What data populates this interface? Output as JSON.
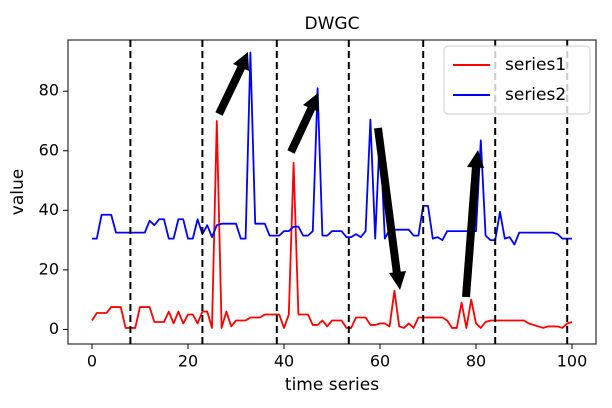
{
  "chart_data": {
    "type": "line",
    "title": "DWGC",
    "xlabel": "time series",
    "ylabel": "value",
    "x": [
      0,
      1,
      2,
      3,
      4,
      5,
      6,
      7,
      8,
      9,
      10,
      11,
      12,
      13,
      14,
      15,
      16,
      17,
      18,
      19,
      20,
      21,
      22,
      23,
      24,
      25,
      26,
      27,
      28,
      29,
      30,
      31,
      32,
      33,
      34,
      35,
      36,
      37,
      38,
      39,
      40,
      41,
      42,
      43,
      44,
      45,
      46,
      47,
      48,
      49,
      50,
      51,
      52,
      53,
      54,
      55,
      56,
      57,
      58,
      59,
      60,
      61,
      62,
      63,
      64,
      65,
      66,
      67,
      68,
      69,
      70,
      71,
      72,
      73,
      74,
      75,
      76,
      77,
      78,
      79,
      80,
      81,
      82,
      83,
      84,
      85,
      86,
      87,
      88,
      89,
      90,
      91,
      92,
      93,
      94,
      95,
      96,
      97,
      98,
      99,
      100
    ],
    "series": [
      {
        "name": "series1",
        "color": "#ff0000",
        "values": [
          3,
          5.5,
          5.5,
          5.5,
          7.5,
          7.5,
          7.5,
          0.5,
          0.5,
          0.5,
          7.5,
          7.5,
          7.5,
          2.5,
          2.5,
          2.5,
          6,
          2,
          6,
          2,
          5,
          5,
          2,
          6,
          6,
          0.5,
          70,
          0.5,
          6,
          1,
          3,
          3,
          3,
          4,
          4,
          4,
          5,
          5,
          5,
          5,
          0.5,
          5,
          56,
          5,
          5,
          5,
          1.5,
          1.5,
          3,
          1,
          3,
          3,
          3,
          0.5,
          0.5,
          4,
          4,
          4,
          1.5,
          1.5,
          2,
          2,
          1,
          13,
          1,
          0.5,
          2,
          0.5,
          4,
          4,
          4,
          4,
          4,
          4,
          3,
          0.5,
          0.5,
          9,
          0.5,
          10,
          2,
          0.5,
          2.5,
          3,
          3,
          3,
          3,
          3,
          3,
          3,
          3,
          2,
          1.5,
          1,
          0.5,
          1,
          1,
          1,
          0.5,
          2,
          2.5
        ]
      },
      {
        "name": "series2",
        "color": "#0000ff",
        "values": [
          30.5,
          30.5,
          38.5,
          38.5,
          38.5,
          32.5,
          32.5,
          32.5,
          32.5,
          32.5,
          32.5,
          32.5,
          36.5,
          35,
          37,
          37,
          30.5,
          30.5,
          37,
          37,
          30.5,
          30.5,
          37,
          32,
          35,
          31,
          35,
          35.5,
          35.5,
          35.5,
          35.5,
          30.5,
          30.5,
          93,
          35.5,
          35.5,
          35.5,
          31.5,
          31.5,
          31.5,
          33,
          33,
          34.5,
          34.5,
          31.5,
          31.5,
          33,
          81,
          31.5,
          31.5,
          33,
          33,
          33,
          31,
          31,
          32,
          31,
          33,
          70.5,
          30.5,
          67,
          30.5,
          33.5,
          33.5,
          33.5,
          33.5,
          33.5,
          31.5,
          31.5,
          41.5,
          41.5,
          30.5,
          31,
          30,
          33,
          33,
          33,
          33,
          33,
          33,
          33,
          63.5,
          31.5,
          30,
          30,
          39.5,
          30.5,
          31,
          28.5,
          32.5,
          32.5,
          32.5,
          32.5,
          32.5,
          32.5,
          32.5,
          32.5,
          32,
          30.5,
          30.5,
          30.5
        ]
      }
    ],
    "vlines": [
      8,
      23,
      38.5,
      53.5,
      69,
      84,
      99
    ],
    "xlim": [
      -5,
      105
    ],
    "ylim": [
      -4.9,
      97.2
    ],
    "xticks": [
      0,
      20,
      40,
      60,
      80,
      100
    ],
    "yticks": [
      0,
      20,
      40,
      60,
      80
    ],
    "legend": "upper right"
  }
}
